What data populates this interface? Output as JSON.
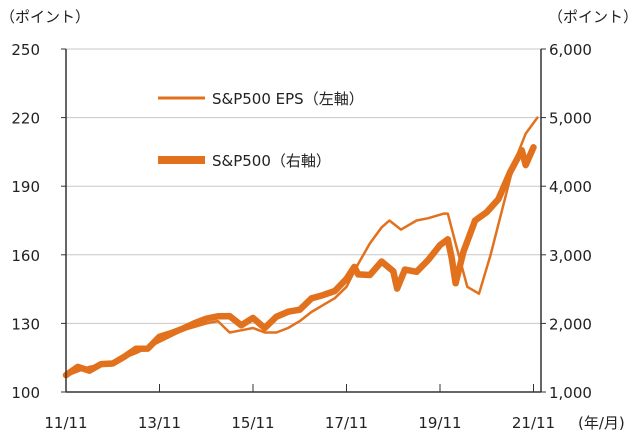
{
  "chart_data": {
    "type": "line",
    "left_axis_unit": "（ポイント）",
    "right_axis_unit": "（ポイント）",
    "x_unit": "(年/月)",
    "x_tick_labels": [
      "11/11",
      "13/11",
      "15/11",
      "17/11",
      "19/11",
      "21/11"
    ],
    "left_ticks": [
      "100",
      "130",
      "160",
      "190",
      "220",
      "250"
    ],
    "right_ticks": [
      "1,000",
      "2,000",
      "3,000",
      "4,000",
      "5,000",
      "6,000"
    ],
    "ylim_left": [
      100,
      250
    ],
    "ylim_right": [
      1000,
      6000
    ],
    "grid": true,
    "legend_placement": "top-left",
    "color": "#E2711D",
    "series": [
      {
        "name": "S&P500 EPS（左軸）",
        "axis": "left",
        "x": [
          "2011-11",
          "2012-05",
          "2012-11",
          "2013-05",
          "2013-11",
          "2014-05",
          "2014-11",
          "2015-02",
          "2015-05",
          "2015-08",
          "2015-11",
          "2016-02",
          "2016-05",
          "2016-08",
          "2016-11",
          "2017-02",
          "2017-05",
          "2017-08",
          "2017-11",
          "2018-02",
          "2018-05",
          "2018-08",
          "2018-10",
          "2019-01",
          "2019-05",
          "2019-08",
          "2019-12",
          "2020-01",
          "2020-03",
          "2020-06",
          "2020-09",
          "2020-12",
          "2021-03",
          "2021-06",
          "2021-09",
          "2021-12"
        ],
        "y": [
          107,
          111,
          113,
          117,
          122,
          127,
          130,
          131,
          126,
          127,
          128,
          126,
          126,
          128,
          131,
          135,
          138,
          141,
          146,
          156,
          165,
          172,
          175,
          171,
          175,
          176,
          178,
          178,
          165,
          146,
          143,
          160,
          180,
          200,
          213,
          220
        ]
      },
      {
        "name": "S&P500（右軸）",
        "axis": "right",
        "x": [
          "2011-11",
          "2012-02",
          "2012-05",
          "2012-08",
          "2012-11",
          "2013-02",
          "2013-05",
          "2013-08",
          "2013-11",
          "2014-02",
          "2014-05",
          "2014-08",
          "2014-11",
          "2015-02",
          "2015-05",
          "2015-08",
          "2015-11",
          "2016-02",
          "2016-05",
          "2016-08",
          "2016-11",
          "2017-02",
          "2017-05",
          "2017-08",
          "2017-11",
          "2018-01",
          "2018-02",
          "2018-05",
          "2018-08",
          "2018-11",
          "2018-12",
          "2019-02",
          "2019-05",
          "2019-08",
          "2019-11",
          "2020-01",
          "2020-02",
          "2020-03",
          "2020-05",
          "2020-08",
          "2020-11",
          "2021-02",
          "2021-05",
          "2021-08",
          "2021-09",
          "2021-11"
        ],
        "y": [
          1247,
          1366,
          1310,
          1406,
          1416,
          1514,
          1631,
          1633,
          1806,
          1859,
          1924,
          2003,
          2068,
          2104,
          2107,
          1972,
          2080,
          1932,
          2097,
          2171,
          2199,
          2364,
          2412,
          2472,
          2648,
          2824,
          2714,
          2705,
          2902,
          2760,
          2507,
          2784,
          2752,
          2926,
          3141,
          3226,
          2954,
          2585,
          3044,
          3500,
          3622,
          3811,
          4204,
          4523,
          4308,
          4567
        ]
      }
    ]
  }
}
